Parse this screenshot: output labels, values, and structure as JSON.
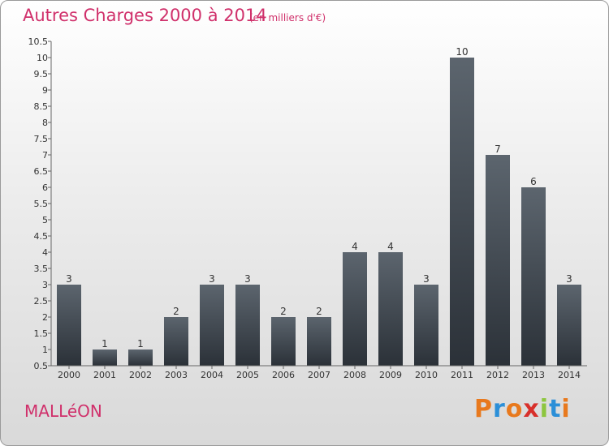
{
  "header": {
    "title": "Autres Charges 2000 à 2014",
    "subtitle": "(en milliers d'€)"
  },
  "footer": {
    "place": "MALLéON",
    "logo_text": "Proxiti"
  },
  "colors": {
    "accent": "#d0306b",
    "bar_top": "#5c656e",
    "bar_bottom": "#2b3138",
    "logo_letters": [
      "#e8791d",
      "#2b8fd8",
      "#e8791d",
      "#d8302b",
      "#8dc63f",
      "#2b8fd8",
      "#e8791d"
    ]
  },
  "chart_data": {
    "type": "bar",
    "title": "Autres Charges 2000 à 2014",
    "subtitle": "(en milliers d'€)",
    "categories": [
      "2000",
      "2001",
      "2002",
      "2003",
      "2004",
      "2005",
      "2006",
      "2007",
      "2008",
      "2009",
      "2010",
      "2011",
      "2012",
      "2013",
      "2014"
    ],
    "values": [
      3,
      1,
      1,
      2,
      3,
      3,
      2,
      2,
      4,
      4,
      3,
      10,
      7,
      6,
      3
    ],
    "data_labels": [
      "3",
      "1",
      "1",
      "2",
      "3",
      "3",
      "2",
      "2",
      "4",
      "4",
      "3",
      "10",
      "7",
      "6",
      "3"
    ],
    "ylim": [
      0.5,
      10.5
    ],
    "yticks": [
      0.5,
      1,
      1.5,
      2,
      2.5,
      3,
      3.5,
      4,
      4.5,
      5,
      5.5,
      6,
      6.5,
      7,
      7.5,
      8,
      8.5,
      9,
      9.5,
      10,
      10.5
    ],
    "ytick_labels": [
      "0.5",
      "1",
      "1.5",
      "2",
      "2.5",
      "3",
      "3.5",
      "4",
      "4.5",
      "5",
      "5.5",
      "6",
      "6.5",
      "7",
      "7.5",
      "8",
      "8.5",
      "9",
      "9.5",
      "10",
      "10.5"
    ],
    "xlabel": "",
    "ylabel": "",
    "grid": false
  }
}
